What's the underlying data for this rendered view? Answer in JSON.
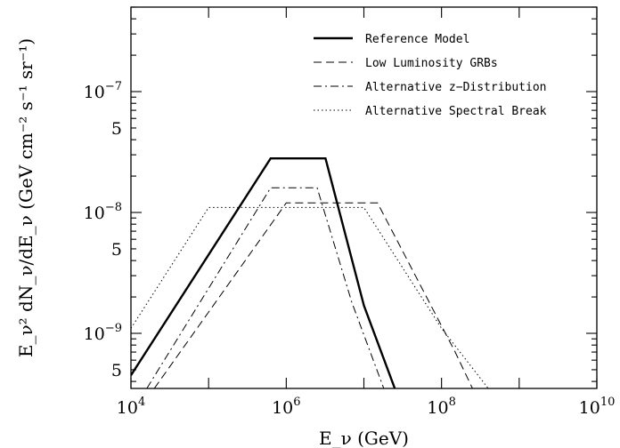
{
  "chart_data": {
    "type": "line",
    "title": "",
    "xlabel": "E_ν (GeV)",
    "ylabel": "E_ν² dN_ν/dE_ν (GeV cm⁻² s⁻¹ sr⁻¹)",
    "x_scale": "log",
    "y_scale": "log",
    "xlim": [
      10000,
      10000000000
    ],
    "ylim": [
      3.5e-10,
      5e-07
    ],
    "x_ticks": [
      {
        "value": 10000,
        "base": "10",
        "exp": "4"
      },
      {
        "value": 1000000,
        "base": "10",
        "exp": "6"
      },
      {
        "value": 100000000,
        "base": "10",
        "exp": "8"
      },
      {
        "value": 10000000000,
        "base": "10",
        "exp": "10"
      }
    ],
    "y_ticks": [
      {
        "value": 1e-07,
        "base": "10",
        "exp": "−7"
      },
      {
        "value": 5e-08,
        "base": "5",
        "exp": ""
      },
      {
        "value": 1e-08,
        "base": "10",
        "exp": "−8"
      },
      {
        "value": 5e-09,
        "base": "5",
        "exp": ""
      },
      {
        "value": 1e-09,
        "base": "10",
        "exp": "−9"
      },
      {
        "value": 5e-10,
        "base": "5",
        "exp": ""
      }
    ],
    "legend_position": "top-right",
    "series": [
      {
        "name": "Reference Model",
        "style": "solid",
        "x": [
          10000,
          630000,
          3200000,
          10000000,
          25000000
        ],
        "y": [
          4.5e-10,
          2.8e-08,
          2.8e-08,
          1.7e-09,
          3.5e-10
        ]
      },
      {
        "name": "Low Luminosity GRBs",
        "style": "dashed",
        "x": [
          20000,
          1000000,
          15000000,
          150000000,
          250000000
        ],
        "y": [
          3.5e-10,
          1.2e-08,
          1.2e-08,
          7e-10,
          3.5e-10
        ]
      },
      {
        "name": "Alternative z−Distribution",
        "style": "dashdot",
        "x": [
          16000,
          630000,
          2500000,
          7000000,
          18000000
        ],
        "y": [
          3.5e-10,
          1.6e-08,
          1.6e-08,
          1.8e-09,
          3.5e-10
        ]
      },
      {
        "name": "Alternative Spectral Break",
        "style": "dotted",
        "x": [
          10000,
          100000,
          10000000,
          100000000,
          400000000
        ],
        "y": [
          1.1e-09,
          1.1e-08,
          1.1e-08,
          1.1e-09,
          3.5e-10
        ]
      }
    ]
  }
}
